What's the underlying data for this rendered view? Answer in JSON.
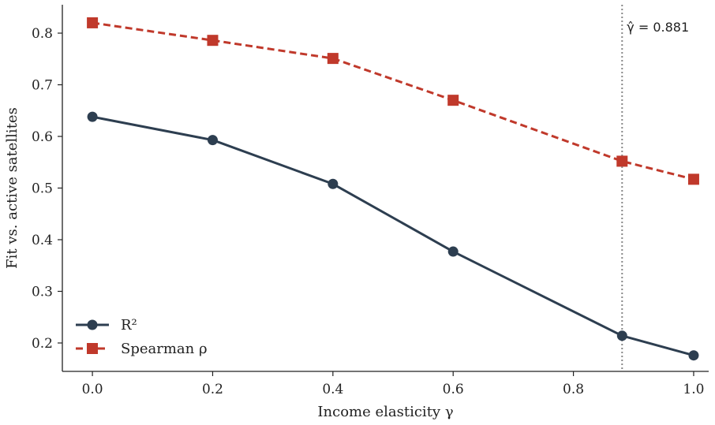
{
  "chart_data": {
    "type": "line",
    "xlabel": "Income elasticity γ",
    "ylabel": "Fit vs. active satellites",
    "xlim": [
      -0.05,
      1.025
    ],
    "ylim": [
      0.145,
      0.855
    ],
    "xticks": [
      0.0,
      0.2,
      0.4,
      0.6,
      0.8,
      1.0
    ],
    "xtick_labels": [
      "0.0",
      "0.2",
      "0.4",
      "0.6",
      "0.8",
      "1.0"
    ],
    "yticks": [
      0.2,
      0.3,
      0.4,
      0.5,
      0.6,
      0.7,
      0.8
    ],
    "ytick_labels": [
      "0.2",
      "0.3",
      "0.4",
      "0.5",
      "0.6",
      "0.7",
      "0.8"
    ],
    "grid": false,
    "legend_position": "bottom-left",
    "series": [
      {
        "name": "R²",
        "color": "#2d3e50",
        "marker": "circle",
        "linestyle": "solid",
        "x": [
          0.0,
          0.2,
          0.4,
          0.6,
          0.881,
          1.0
        ],
        "y": [
          0.638,
          0.593,
          0.508,
          0.377,
          0.214,
          0.176
        ]
      },
      {
        "name": "Spearman ρ",
        "color": "#c0392b",
        "marker": "square",
        "linestyle": "dashed",
        "x": [
          0.0,
          0.2,
          0.4,
          0.6,
          0.881,
          1.0
        ],
        "y": [
          0.82,
          0.786,
          0.751,
          0.67,
          0.552,
          0.517
        ]
      }
    ],
    "reference_line": {
      "x": 0.881,
      "label": "γ̂ = 0.881",
      "color": "#888888",
      "linestyle": "dotted"
    }
  }
}
